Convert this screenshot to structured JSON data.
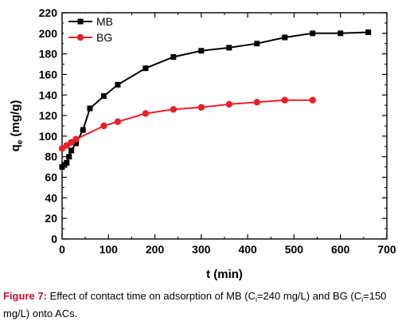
{
  "chart_data": {
    "type": "line",
    "xlabel": "t (min)",
    "ylabel_main": "q",
    "ylabel_sub": "e",
    "ylabel_unit": " (mg/g)",
    "xlim": [
      0,
      700
    ],
    "ylim": [
      0,
      220
    ],
    "x_ticks": [
      "0",
      "100",
      "200",
      "300",
      "400",
      "500",
      "600",
      "700"
    ],
    "y_ticks": [
      "0",
      "20",
      "40",
      "60",
      "80",
      "100",
      "120",
      "140",
      "160",
      "180",
      "200",
      "220"
    ],
    "legend_position": "top-left",
    "grid": false,
    "series": [
      {
        "name": "MB",
        "color": "#000000",
        "marker": "square",
        "x": [
          0,
          5,
          10,
          15,
          20,
          30,
          45,
          60,
          90,
          120,
          180,
          240,
          300,
          360,
          420,
          480,
          540,
          600,
          660
        ],
        "y": [
          70,
          72,
          74,
          80,
          86,
          93,
          106,
          127,
          139,
          150,
          166,
          177,
          183,
          186,
          190,
          196,
          200,
          200,
          201
        ]
      },
      {
        "name": "BG",
        "color": "#e8202a",
        "marker": "circle",
        "x": [
          0,
          10,
          20,
          30,
          90,
          120,
          180,
          240,
          300,
          360,
          420,
          480,
          540
        ],
        "y": [
          88,
          91,
          94,
          97,
          110,
          114,
          122,
          126,
          128,
          131,
          133,
          135,
          135
        ]
      }
    ]
  },
  "caption": {
    "label": "Figure 7:",
    "t1": " Effect of contact time on adsorption of MB (C",
    "sub1": "i",
    "t2": "=240 mg/L) and BG (C",
    "sub2": "i",
    "t3": "=150 mg/L) onto ACs."
  }
}
